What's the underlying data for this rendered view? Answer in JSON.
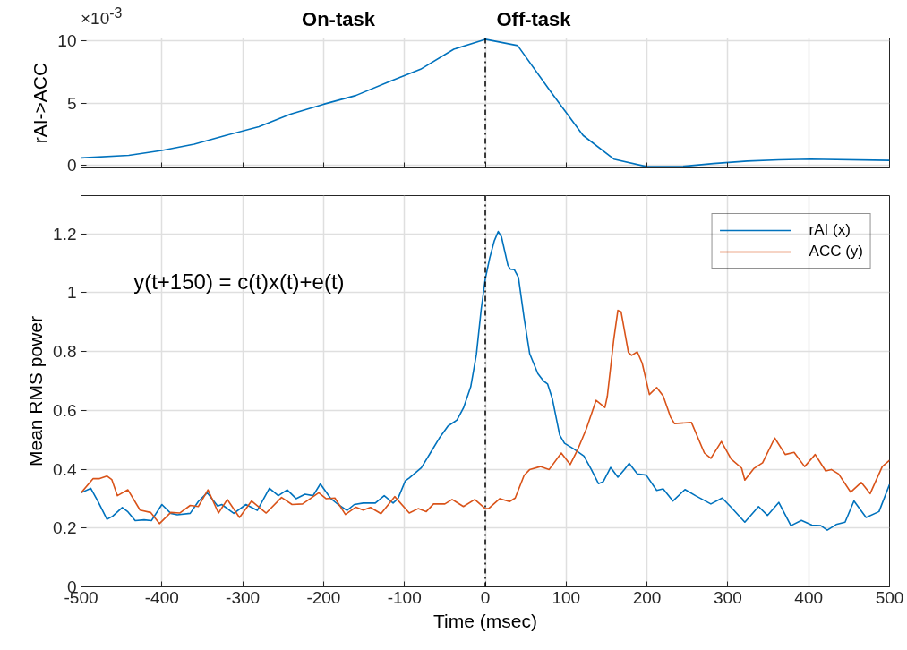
{
  "chart_data": [
    {
      "type": "line",
      "ylabel": "rAI->ACC",
      "annotations": [
        "×10$^{-3}$",
        "On-task",
        "Off-task"
      ],
      "xlim": [
        -500,
        500
      ],
      "ylim": [
        -0.2,
        10.2
      ],
      "xticks": [
        -500,
        -400,
        -300,
        -200,
        -100,
        0,
        100,
        200,
        300,
        400,
        500
      ],
      "yticks": [
        0,
        5,
        10
      ],
      "tick_labels": "y",
      "grid": true,
      "ref_lines": [
        {
          "axis": "x",
          "value": 0,
          "color": "#000000",
          "line_style": "dashdot"
        }
      ],
      "series": [
        {
          "color": "#0072bd",
          "x": [
            -500,
            -441,
            -400,
            -360,
            -321,
            -280,
            -241,
            -200,
            -160,
            -119,
            -80,
            -39,
            0,
            40,
            81,
            121,
            159,
            200,
            241,
            282,
            324,
            363,
            402,
            500
          ],
          "values": [
            0.6,
            0.8,
            1.2,
            1.7,
            2.4,
            3.1,
            4.1,
            4.9,
            5.6,
            6.7,
            7.7,
            9.3,
            10.1,
            9.6,
            5.9,
            2.4,
            0.5,
            -0.1,
            -0.1,
            0.15,
            0.35,
            0.45,
            0.5,
            0.4
          ]
        }
      ]
    },
    {
      "type": "line",
      "xlabel": "Time (msec)",
      "ylabel": "Mean RMS power",
      "annotations": [
        "y(t+150) = c(t)x(t)+e(t)"
      ],
      "xlim": [
        -500,
        500
      ],
      "ylim": [
        0,
        1.33
      ],
      "xticks": [
        -500,
        -400,
        -300,
        -200,
        -100,
        0,
        100,
        200,
        300,
        400,
        500
      ],
      "yticks": [
        0,
        0.2,
        0.4,
        0.6,
        0.8,
        1,
        1.2
      ],
      "grid": true,
      "legend": "top right",
      "ref_lines": [
        {
          "axis": "x",
          "value": 0,
          "color": "#000000",
          "line_style": "dashdot"
        }
      ],
      "series": [
        {
          "name": "rAI (x)",
          "color": "#0072bd",
          "x": [
            -500,
            -488,
            -479,
            -468,
            -461,
            -449,
            -442,
            -433,
            -422,
            -413,
            -400,
            -389,
            -381,
            -365,
            -355,
            -344,
            -331,
            -326,
            -311,
            -296,
            -282,
            -267,
            -256,
            -245,
            -234,
            -223,
            -213,
            -204,
            -191,
            -182,
            -171,
            -162,
            -151,
            -136,
            -125,
            -114,
            -108,
            -99,
            -94,
            -79,
            -68,
            -57,
            -46,
            -35,
            -27,
            -18,
            -11,
            -5,
            0,
            5.5,
            11,
            16,
            20,
            28,
            31,
            36,
            41,
            48,
            55,
            65,
            72,
            77,
            83,
            92,
            98,
            109,
            122,
            131,
            140,
            146,
            155,
            164,
            172,
            178,
            188,
            199,
            212,
            220,
            232,
            247,
            260,
            279,
            293,
            304,
            321,
            338,
            349,
            363,
            378,
            391,
            404,
            415,
            423,
            434,
            445,
            456,
            471,
            487,
            500
          ],
          "values": [
            0.32,
            0.335,
            0.29,
            0.23,
            0.24,
            0.27,
            0.255,
            0.225,
            0.228,
            0.225,
            0.28,
            0.25,
            0.245,
            0.25,
            0.29,
            0.32,
            0.275,
            0.28,
            0.25,
            0.28,
            0.26,
            0.335,
            0.31,
            0.33,
            0.3,
            0.315,
            0.31,
            0.35,
            0.3,
            0.28,
            0.26,
            0.28,
            0.285,
            0.285,
            0.31,
            0.285,
            0.3,
            0.36,
            0.37,
            0.405,
            0.455,
            0.505,
            0.547,
            0.567,
            0.608,
            0.68,
            0.79,
            0.945,
            1.047,
            1.118,
            1.175,
            1.208,
            1.19,
            1.093,
            1.08,
            1.078,
            1.052,
            0.914,
            0.792,
            0.725,
            0.7,
            0.69,
            0.639,
            0.516,
            0.488,
            0.47,
            0.445,
            0.4,
            0.351,
            0.358,
            0.406,
            0.373,
            0.399,
            0.42,
            0.384,
            0.38,
            0.328,
            0.333,
            0.292,
            0.331,
            0.31,
            0.282,
            0.302,
            0.271,
            0.22,
            0.273,
            0.243,
            0.287,
            0.208,
            0.226,
            0.21,
            0.208,
            0.193,
            0.212,
            0.22,
            0.292,
            0.236,
            0.256,
            0.348
          ]
        },
        {
          "name": "ACC (y)",
          "color": "#d95319",
          "x": [
            -500,
            -485,
            -477,
            -468,
            -462,
            -455,
            -442,
            -427,
            -414,
            -403,
            -389,
            -378,
            -365,
            -355,
            -343,
            -330,
            -319,
            -304,
            -289,
            -271,
            -252,
            -239,
            -226,
            -206,
            -197,
            -186,
            -173,
            -160,
            -151,
            -142,
            -129,
            -112,
            -94,
            -83,
            -73,
            -64,
            -50,
            -41,
            -27,
            -13,
            0,
            4,
            18,
            30,
            37,
            48,
            55,
            68,
            79,
            94,
            105,
            114,
            125,
            137,
            148,
            151,
            159,
            164,
            168,
            177,
            181,
            188,
            194,
            203,
            212,
            220,
            229,
            234,
            255,
            271,
            279,
            292,
            304,
            317,
            321,
            332,
            343,
            358,
            371,
            382,
            395,
            408,
            421,
            428,
            437,
            452,
            465,
            476,
            491,
            500
          ],
          "values": [
            0.32,
            0.368,
            0.368,
            0.377,
            0.365,
            0.31,
            0.33,
            0.261,
            0.253,
            0.215,
            0.253,
            0.251,
            0.277,
            0.273,
            0.33,
            0.251,
            0.297,
            0.236,
            0.292,
            0.251,
            0.304,
            0.28,
            0.282,
            0.32,
            0.3,
            0.302,
            0.246,
            0.271,
            0.261,
            0.27,
            0.249,
            0.307,
            0.251,
            0.266,
            0.256,
            0.282,
            0.282,
            0.297,
            0.273,
            0.297,
            0.266,
            0.266,
            0.3,
            0.29,
            0.302,
            0.379,
            0.399,
            0.409,
            0.399,
            0.455,
            0.416,
            0.465,
            0.537,
            0.634,
            0.61,
            0.649,
            0.843,
            0.94,
            0.935,
            0.797,
            0.787,
            0.799,
            0.761,
            0.654,
            0.678,
            0.649,
            0.578,
            0.555,
            0.559,
            0.455,
            0.437,
            0.494,
            0.435,
            0.404,
            0.363,
            0.402,
            0.422,
            0.506,
            0.45,
            0.457,
            0.409,
            0.45,
            0.394,
            0.399,
            0.384,
            0.322,
            0.355,
            0.317,
            0.409,
            0.43
          ]
        }
      ]
    }
  ]
}
